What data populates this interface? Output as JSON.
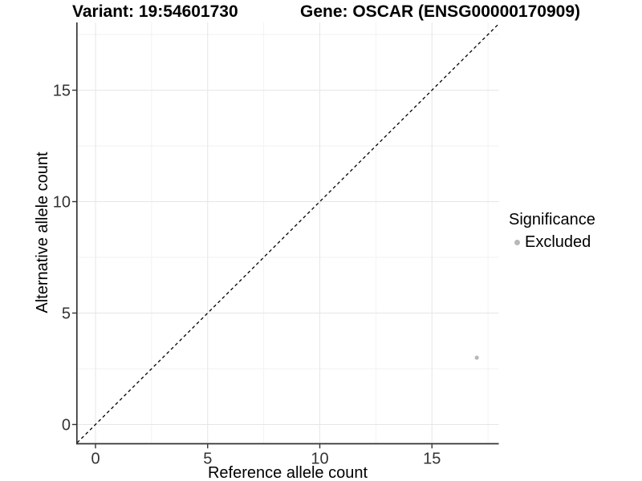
{
  "chart_data": {
    "type": "scatter",
    "title_variant": "Variant: 19:54601730",
    "title_gene": "Gene: OSCAR (ENSG00000170909)",
    "xlabel": "Reference allele count",
    "ylabel": "Alternative allele count",
    "xlim": [
      -0.82,
      17.96
    ],
    "ylim": [
      -0.85,
      18.05
    ],
    "x_major_ticks": [
      0,
      5,
      10,
      15
    ],
    "y_major_ticks": [
      0,
      5,
      10,
      15
    ],
    "x_minor_ticks": [
      2.5,
      7.5,
      12.5,
      17.5
    ],
    "y_minor_ticks": [
      2.5,
      7.5,
      12.5,
      17.5
    ],
    "grid": true,
    "points": [
      {
        "x": 17,
        "y": 3,
        "significance": "Excluded",
        "color": "#b8b8b8"
      }
    ],
    "identity_line": {
      "slope": 1,
      "intercept": 0,
      "style": "dashed",
      "color": "#000000"
    },
    "legend": {
      "title": "Significance",
      "position": "right",
      "items": [
        {
          "label": "Excluded",
          "color": "#b8b8b8",
          "marker": "circle"
        }
      ]
    },
    "colors": {
      "background": "#ffffff",
      "axis_line": "#333333",
      "tick_label": "#333333",
      "grid_major": "#e6e6e6",
      "grid_minor": "#f2f2f2",
      "point": "#b8b8b8"
    }
  }
}
